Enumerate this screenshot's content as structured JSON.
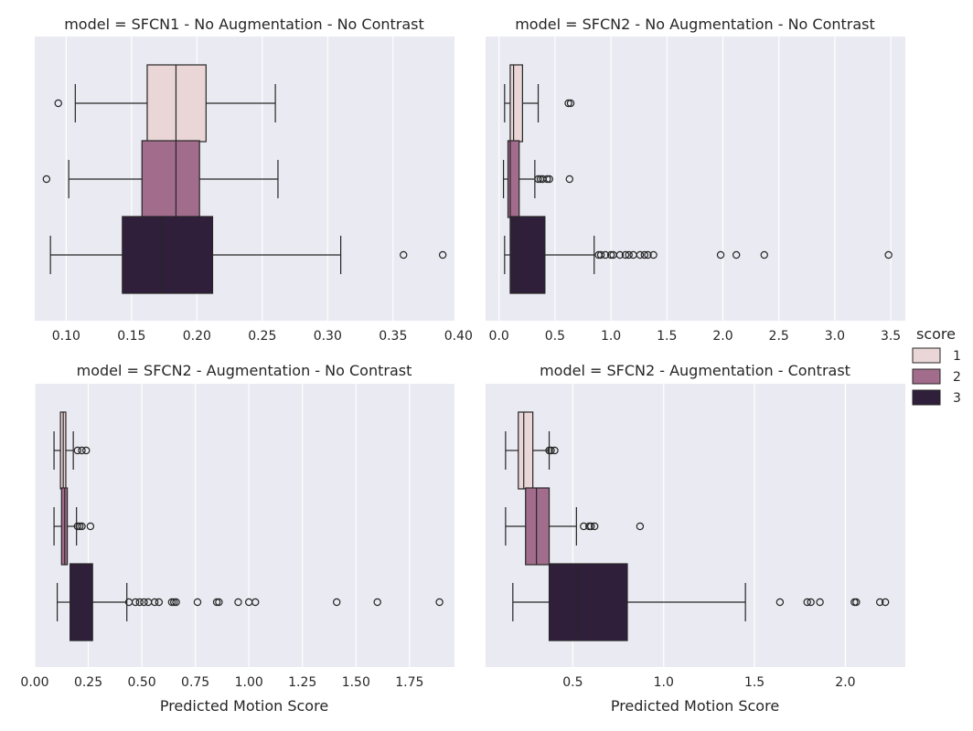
{
  "chart_data": {
    "type": "boxplot",
    "xlabel": "Predicted Motion Score",
    "legend": {
      "title": "score",
      "placement": "right-center",
      "entries": [
        {
          "label": "1",
          "color": "#ead6d6"
        },
        {
          "label": "2",
          "color": "#a26c8c"
        },
        {
          "label": "3",
          "color": "#2f1f3b"
        }
      ]
    },
    "panels": [
      {
        "title": "model = SFCN1 - No Augmentation - No Contrast",
        "xlim": [
          0.076,
          0.397
        ],
        "xticks": [
          0.1,
          0.15,
          0.2,
          0.25,
          0.3,
          0.35,
          0.4
        ],
        "xtick_labels": [
          "0.10",
          "0.15",
          "0.20",
          "0.25",
          "0.30",
          "0.35",
          "0.40"
        ],
        "show_xlabel": false,
        "groups": [
          {
            "score": "1",
            "q1": 0.162,
            "median": 0.184,
            "q3": 0.207,
            "whislo": 0.107,
            "whishi": 0.26,
            "fliers": [
              0.094
            ]
          },
          {
            "score": "2",
            "q1": 0.158,
            "median": 0.184,
            "q3": 0.202,
            "whislo": 0.102,
            "whishi": 0.262,
            "fliers": [
              0.085
            ]
          },
          {
            "score": "3",
            "q1": 0.143,
            "median": 0.173,
            "q3": 0.212,
            "whislo": 0.088,
            "whishi": 0.31,
            "fliers": [
              0.358,
              0.388
            ]
          }
        ]
      },
      {
        "title": "model = SFCN2 - No Augmentation - No Contrast",
        "xlim": [
          -0.12,
          3.63
        ],
        "xticks": [
          0.0,
          0.5,
          1.0,
          1.5,
          2.0,
          2.5,
          3.0,
          3.5
        ],
        "xtick_labels": [
          "0.0",
          "0.5",
          "1.0",
          "1.5",
          "2.0",
          "2.5",
          "3.0",
          "3.5"
        ],
        "show_xlabel": false,
        "groups": [
          {
            "score": "1",
            "q1": 0.1,
            "median": 0.13,
            "q3": 0.21,
            "whislo": 0.05,
            "whishi": 0.35,
            "fliers": [
              0.62,
              0.64
            ]
          },
          {
            "score": "2",
            "q1": 0.08,
            "median": 0.1,
            "q3": 0.18,
            "whislo": 0.04,
            "whishi": 0.32,
            "fliers": [
              0.35,
              0.37,
              0.39,
              0.43,
              0.45,
              0.63
            ]
          },
          {
            "score": "3",
            "q1": 0.1,
            "median": 0.15,
            "q3": 0.41,
            "whislo": 0.05,
            "whishi": 0.85,
            "fliers": [
              0.89,
              0.91,
              0.95,
              1.0,
              1.02,
              1.08,
              1.13,
              1.16,
              1.2,
              1.26,
              1.3,
              1.33,
              1.38,
              1.98,
              2.12,
              2.37,
              3.48
            ]
          }
        ]
      },
      {
        "title": "model = SFCN2 - Augmentation - No Contrast",
        "xlim": [
          0.0,
          1.96
        ],
        "xticks": [
          0.0,
          0.25,
          0.5,
          0.75,
          1.0,
          1.25,
          1.5,
          1.75
        ],
        "xtick_labels": [
          "0.00",
          "0.25",
          "0.50",
          "0.75",
          "1.00",
          "1.25",
          "1.50",
          "1.75"
        ],
        "show_xlabel": true,
        "groups": [
          {
            "score": "1",
            "q1": 0.12,
            "median": 0.133,
            "q3": 0.145,
            "whislo": 0.09,
            "whishi": 0.18,
            "fliers": [
              0.2,
              0.22,
              0.24
            ]
          },
          {
            "score": "2",
            "q1": 0.125,
            "median": 0.14,
            "q3": 0.152,
            "whislo": 0.09,
            "whishi": 0.195,
            "fliers": [
              0.2,
              0.21,
              0.22,
              0.26
            ]
          },
          {
            "score": "3",
            "q1": 0.165,
            "median": 0.2,
            "q3": 0.27,
            "whislo": 0.105,
            "whishi": 0.43,
            "fliers": [
              0.44,
              0.47,
              0.49,
              0.51,
              0.53,
              0.56,
              0.58,
              0.64,
              0.65,
              0.66,
              0.76,
              0.85,
              0.86,
              0.95,
              1.0,
              1.03,
              1.41,
              1.6,
              1.89
            ]
          }
        ]
      },
      {
        "title": "model = SFCN2 - Augmentation - Contrast",
        "xlim": [
          0.02,
          2.33
        ],
        "xticks": [
          0.5,
          1.0,
          1.5,
          2.0
        ],
        "xtick_labels": [
          "0.5",
          "1.0",
          "1.5",
          "2.0"
        ],
        "show_xlabel": true,
        "groups": [
          {
            "score": "1",
            "q1": 0.2,
            "median": 0.23,
            "q3": 0.28,
            "whislo": 0.13,
            "whishi": 0.37,
            "fliers": [
              0.37,
              0.38,
              0.4
            ]
          },
          {
            "score": "2",
            "q1": 0.24,
            "median": 0.3,
            "q3": 0.37,
            "whislo": 0.13,
            "whishi": 0.52,
            "fliers": [
              0.56,
              0.59,
              0.6,
              0.62,
              0.87
            ]
          },
          {
            "score": "3",
            "q1": 0.37,
            "median": 0.53,
            "q3": 0.8,
            "whislo": 0.17,
            "whishi": 1.45,
            "fliers": [
              1.64,
              1.79,
              1.81,
              1.86,
              2.05,
              2.06,
              2.19,
              2.22
            ]
          }
        ]
      }
    ]
  }
}
